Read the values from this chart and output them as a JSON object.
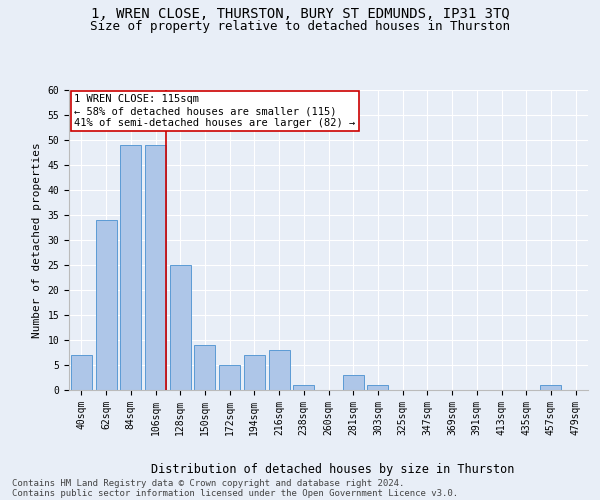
{
  "title1": "1, WREN CLOSE, THURSTON, BURY ST EDMUNDS, IP31 3TQ",
  "title2": "Size of property relative to detached houses in Thurston",
  "xlabel": "Distribution of detached houses by size in Thurston",
  "ylabel": "Number of detached properties",
  "categories": [
    "40sqm",
    "62sqm",
    "84sqm",
    "106sqm",
    "128sqm",
    "150sqm",
    "172sqm",
    "194sqm",
    "216sqm",
    "238sqm",
    "260sqm",
    "281sqm",
    "303sqm",
    "325sqm",
    "347sqm",
    "369sqm",
    "391sqm",
    "413sqm",
    "435sqm",
    "457sqm",
    "479sqm"
  ],
  "values": [
    7,
    34,
    49,
    49,
    25,
    9,
    5,
    7,
    8,
    1,
    0,
    3,
    1,
    0,
    0,
    0,
    0,
    0,
    0,
    1,
    0
  ],
  "bar_color": "#aec6e8",
  "bar_edge_color": "#5b9bd5",
  "property_line_color": "#cc0000",
  "annotation_line1": "1 WREN CLOSE: 115sqm",
  "annotation_line2": "← 58% of detached houses are smaller (115)",
  "annotation_line3": "41% of semi-detached houses are larger (82) →",
  "annotation_box_color": "#ffffff",
  "annotation_box_edge": "#cc0000",
  "ylim": [
    0,
    60
  ],
  "yticks": [
    0,
    5,
    10,
    15,
    20,
    25,
    30,
    35,
    40,
    45,
    50,
    55,
    60
  ],
  "footnote_line1": "Contains HM Land Registry data © Crown copyright and database right 2024.",
  "footnote_line2": "Contains public sector information licensed under the Open Government Licence v3.0.",
  "background_color": "#e8eef7",
  "plot_background": "#e8eef7",
  "grid_color": "#ffffff",
  "title1_fontsize": 10,
  "title2_fontsize": 9,
  "axis_label_fontsize": 8,
  "tick_fontsize": 7,
  "annotation_fontsize": 7.5,
  "footnote_fontsize": 6.5
}
